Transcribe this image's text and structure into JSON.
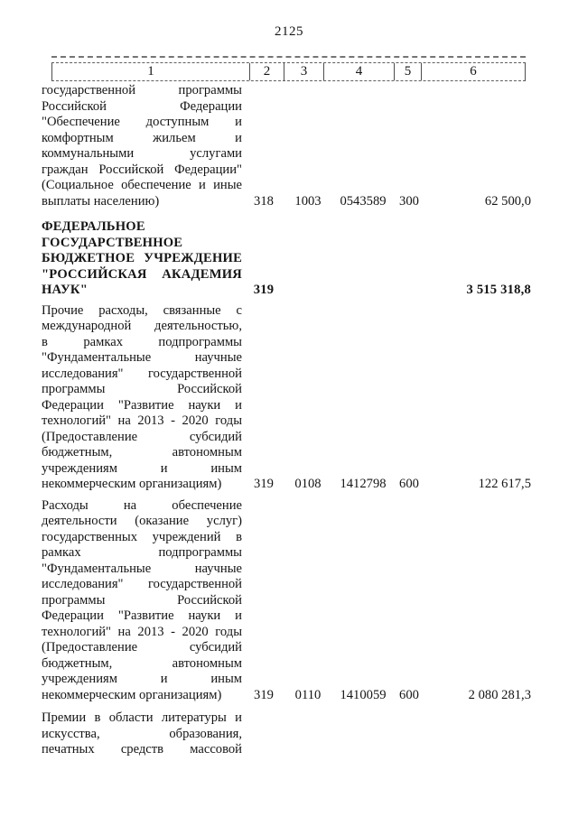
{
  "page_number": "2125",
  "table": {
    "header_cols": [
      "1",
      "2",
      "3",
      "4",
      "5",
      "6"
    ],
    "rows": [
      {
        "lines": [
          "государственной программы",
          "Российской Федерации",
          "\"Обеспечение доступным и",
          "комфортным жильем и",
          "коммунальными услугами",
          "граждан Российской Федерации\"",
          "(Социальное обеспечение и иные",
          "выплаты населению)"
        ],
        "chapter": "318",
        "section": "1003",
        "target_article": "0543589",
        "expense_type": "300",
        "amount": "62 500,0"
      },
      {
        "lines": [
          "ФЕДЕРАЛЬНОЕ",
          "ГОСУДАРСТВЕННОЕ",
          "БЮДЖЕТНОЕ УЧРЕЖДЕНИЕ",
          "\"РОССИЙСКАЯ АКАДЕМИЯ",
          "НАУК\""
        ],
        "chapter": "319",
        "section": "",
        "target_article": "",
        "expense_type": "",
        "amount": "3 515 318,8"
      },
      {
        "lines": [
          "Прочие расходы, связанные с",
          "международной деятельностью,",
          "в рамках подпрограммы",
          "\"Фундаментальные научные",
          "исследования\" государственной",
          "программы Российской",
          "Федерации \"Развитие науки и",
          "технологий\" на 2013 - 2020 годы",
          "(Предоставление субсидий",
          "бюджетным, автономным",
          "учреждениям и иным",
          "некоммерческим организациям)"
        ],
        "chapter": "319",
        "section": "0108",
        "target_article": "1412798",
        "expense_type": "600",
        "amount": "122 617,5"
      },
      {
        "lines": [
          "Расходы на обеспечение",
          "деятельности (оказание услуг)",
          "государственных учреждений в",
          "рамках подпрограммы",
          "\"Фундаментальные научные",
          "исследования\" государственной",
          "программы Российской",
          "Федерации \"Развитие науки и",
          "технологий\" на 2013 - 2020 годы",
          "(Предоставление субсидий",
          "бюджетным, автономным",
          "учреждениям и иным",
          "некоммерческим организациям)"
        ],
        "chapter": "319",
        "section": "0110",
        "target_article": "1410059",
        "expense_type": "600",
        "amount": "2 080 281,3"
      },
      {
        "lines": [
          "Премии в области литературы и",
          "искусства, образования,",
          "печатных средств массовой"
        ],
        "chapter": "",
        "section": "",
        "target_article": "",
        "expense_type": "",
        "amount": ""
      }
    ]
  }
}
